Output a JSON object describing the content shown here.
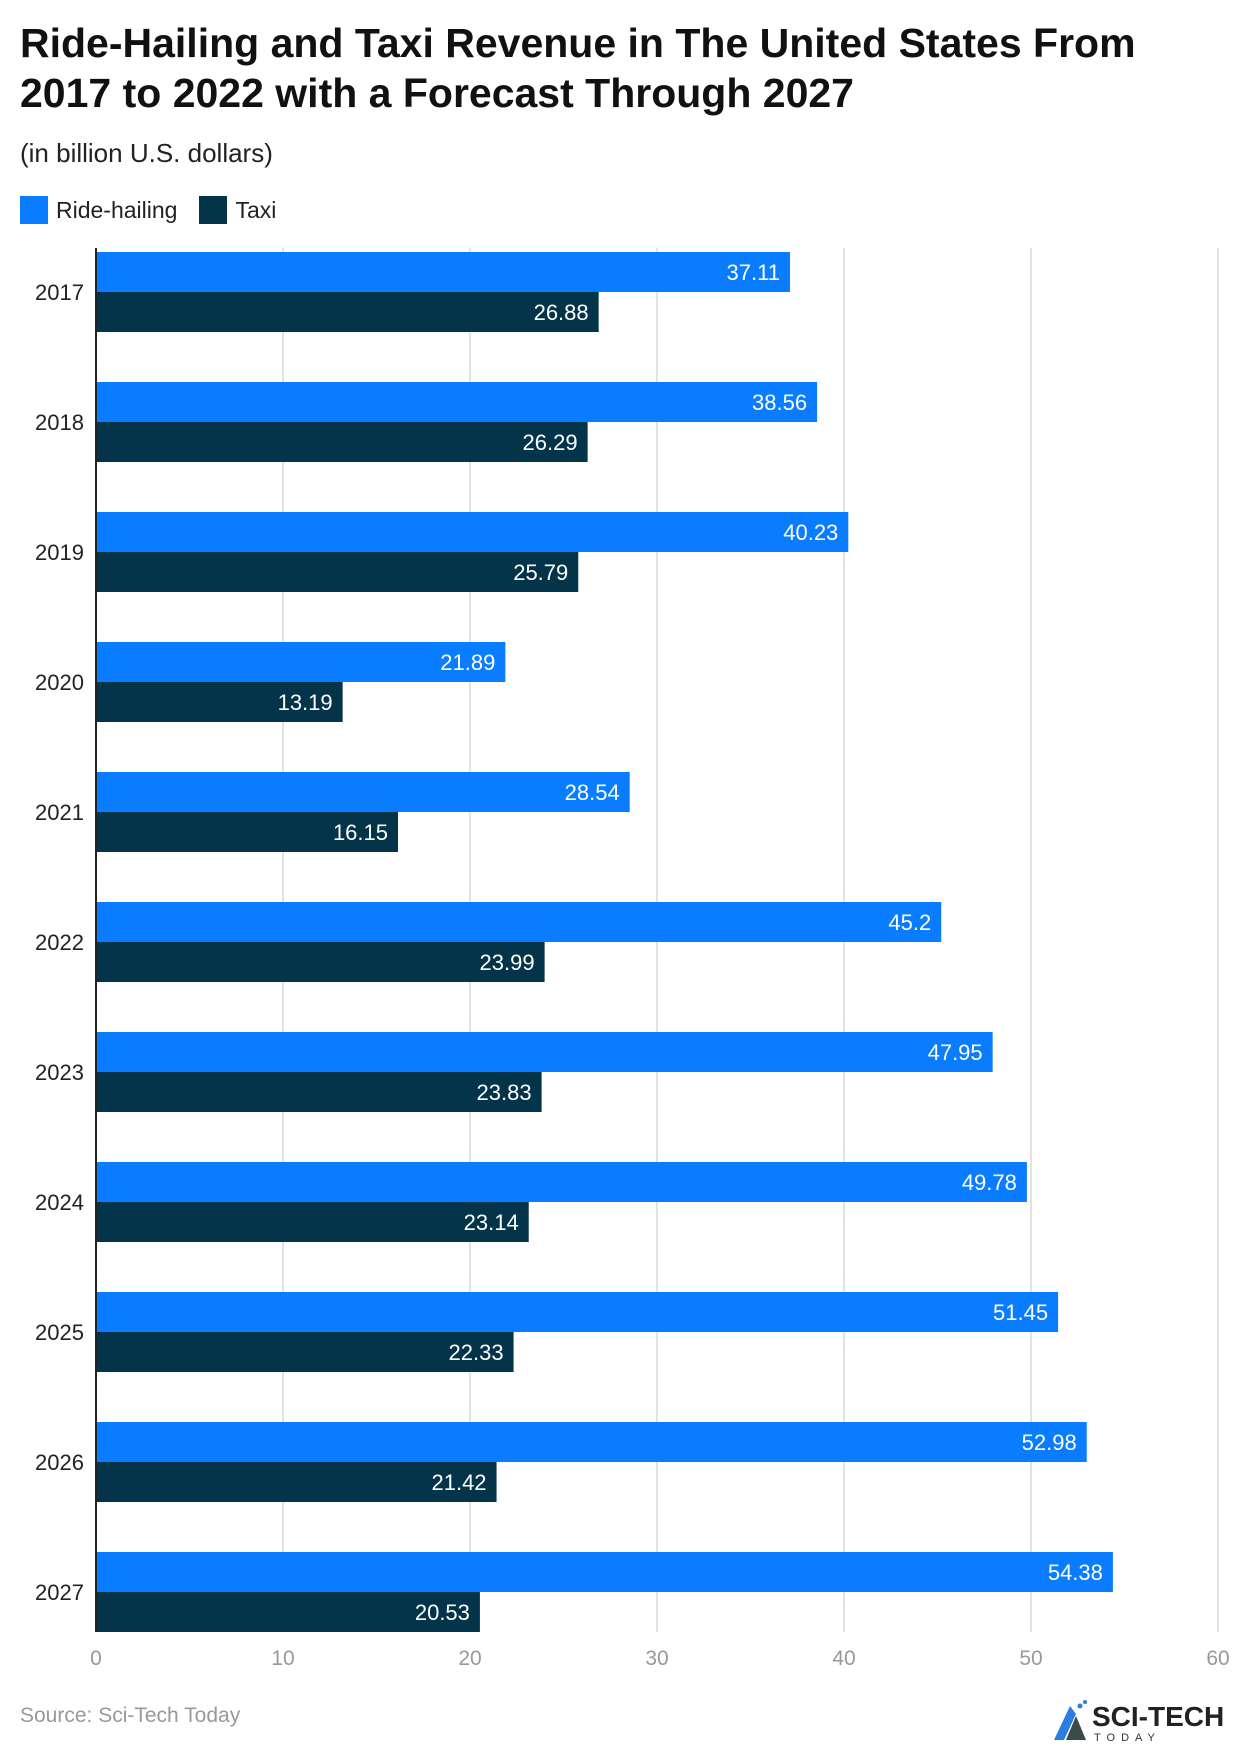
{
  "chart_data": {
    "type": "bar",
    "orientation": "horizontal",
    "title": "Ride-Hailing and Taxi Revenue in The United States From 2017 to 2022 with a Forecast Through 2027",
    "subtitle": "(in billion U.S. dollars)",
    "categories": [
      "2017",
      "2018",
      "2019",
      "2020",
      "2021",
      "2022",
      "2023",
      "2024",
      "2025",
      "2026",
      "2027"
    ],
    "series": [
      {
        "name": "Ride-hailing",
        "color": "#0a7cff",
        "values": [
          37.11,
          38.56,
          40.23,
          21.89,
          28.54,
          45.2,
          47.95,
          49.78,
          51.45,
          52.98,
          54.38
        ]
      },
      {
        "name": "Taxi",
        "color": "#04344a",
        "values": [
          26.88,
          26.29,
          25.79,
          13.19,
          16.15,
          23.99,
          23.83,
          23.14,
          22.33,
          21.42,
          20.53
        ]
      }
    ],
    "xlim": [
      0,
      60
    ],
    "xticks": [
      "0",
      "10",
      "20",
      "30",
      "40",
      "50",
      "60"
    ],
    "grid": true,
    "legend": "top-left",
    "data_labels": true
  },
  "footer": {
    "source": "Source: Sci-Tech Today",
    "logo_text": "SCI-TECH TODAY"
  }
}
